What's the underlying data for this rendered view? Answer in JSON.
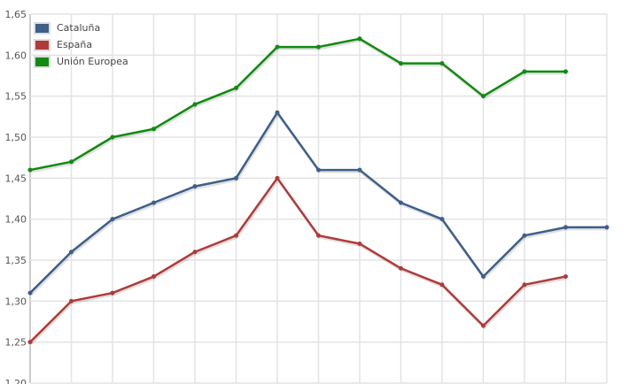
{
  "chart_data": {
    "type": "line",
    "title": "",
    "xlabel": "",
    "ylabel": "",
    "ylim": [
      1.2,
      1.65
    ],
    "y_ticks": [
      "1,20",
      "1,25",
      "1,30",
      "1,35",
      "1,40",
      "1,45",
      "1,50",
      "1,55",
      "1,60",
      "1,65"
    ],
    "x_count": 15,
    "grid": true,
    "legend_position": "top-left",
    "series": [
      {
        "name": "Cataluña",
        "color": "#3d5f8a",
        "values": [
          1.31,
          1.36,
          1.4,
          1.42,
          1.44,
          1.45,
          1.53,
          1.46,
          1.46,
          1.42,
          1.4,
          1.33,
          1.38,
          1.39,
          1.39
        ]
      },
      {
        "name": "España",
        "color": "#b03a3a",
        "values": [
          1.25,
          1.3,
          1.31,
          1.33,
          1.36,
          1.38,
          1.45,
          1.38,
          1.37,
          1.34,
          1.32,
          1.27,
          1.32,
          1.33
        ]
      },
      {
        "name": "Unión Europea",
        "color": "#118a11",
        "values": [
          1.46,
          1.47,
          1.5,
          1.51,
          1.54,
          1.56,
          1.61,
          1.61,
          1.62,
          1.59,
          1.59,
          1.55,
          1.58,
          1.58
        ]
      }
    ]
  }
}
